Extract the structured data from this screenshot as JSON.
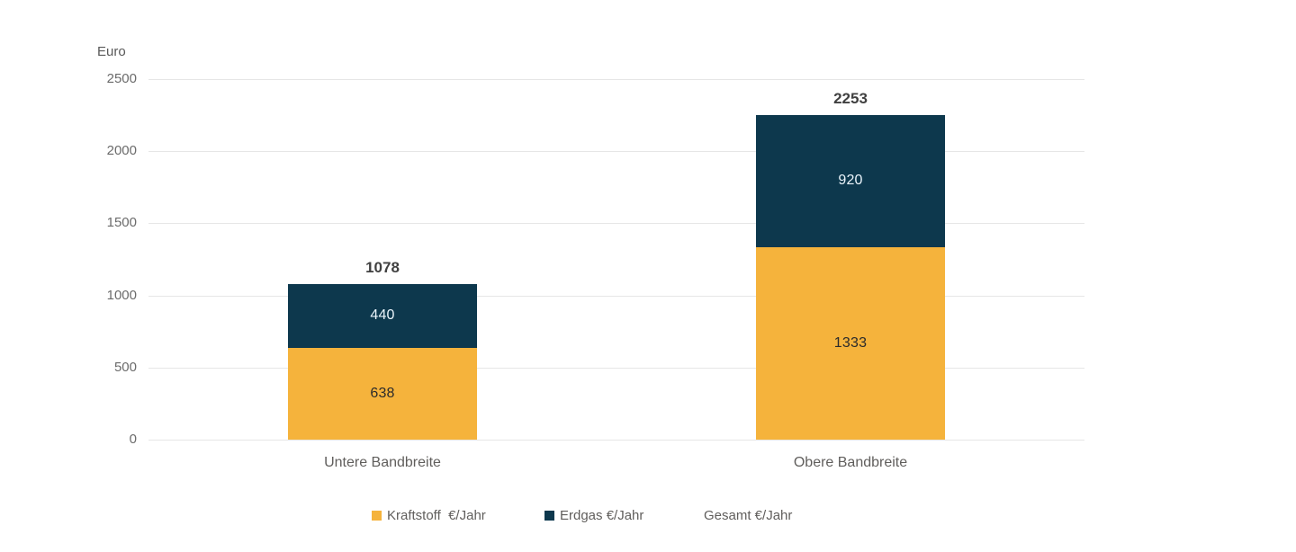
{
  "chart_data": {
    "type": "bar",
    "stacked": true,
    "ylabel": "Euro",
    "categories": [
      "Untere Bandbreite",
      "Obere Bandbreite"
    ],
    "series": [
      {
        "name": "Kraftstoff  €/Jahr",
        "color": "#F5B33C",
        "label_color": "#2b2b2b",
        "values": [
          638,
          1333
        ]
      },
      {
        "name": "Erdgas €/Jahr",
        "color": "#0D384D",
        "label_color": "#eaf4fb",
        "values": [
          440,
          920
        ]
      }
    ],
    "totals": {
      "name": "Gesamt €/Jahr",
      "values": [
        1078,
        2253
      ]
    },
    "ylim": [
      0,
      2500
    ],
    "yticks": [
      0,
      500,
      1000,
      1500,
      2000,
      2500
    ],
    "grid": true,
    "legend_position": "bottom",
    "legend": [
      {
        "label": "Kraftstoff  €/Jahr",
        "color": "#F5B33C"
      },
      {
        "label": "Erdgas €/Jahr",
        "color": "#0D384D"
      },
      {
        "label": "Gesamt €/Jahr",
        "color": "transparent"
      }
    ],
    "colors": {
      "gridline": "#e6e6e6",
      "axis_text": "#6b6b6b",
      "total_label": "#404040",
      "category_label": "#605e5c"
    }
  }
}
